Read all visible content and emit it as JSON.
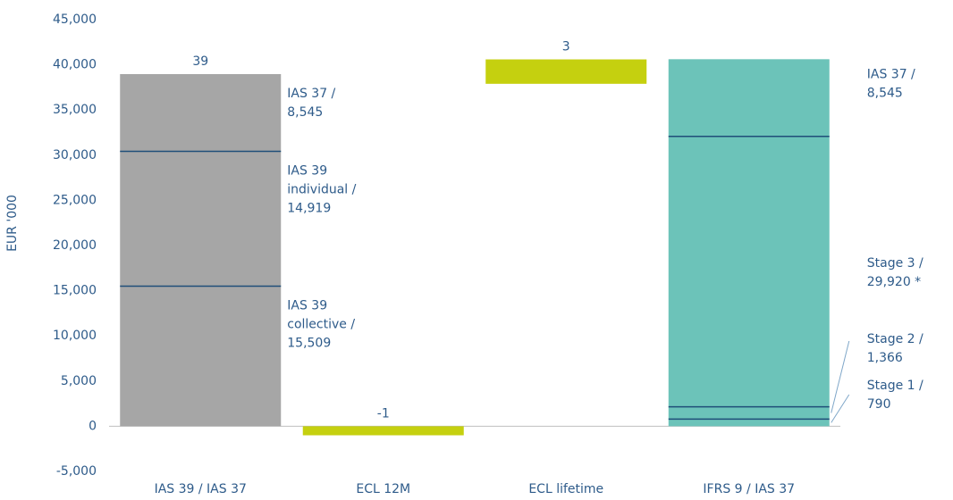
{
  "chart_data": {
    "type": "waterfall",
    "ylabel": "EUR '000",
    "categories": [
      "IAS 39 / IAS 37",
      "ECL 12M",
      "ECL lifetime",
      "IFRS 9 / IAS 37"
    ],
    "ylim": [
      -5000,
      45000
    ],
    "yticks": [
      {
        "value": -5000,
        "label": "-5,000"
      },
      0,
      {
        "value": 5000,
        "label": "5,000"
      },
      {
        "value": 10000,
        "label": "10,000"
      },
      {
        "value": 15000,
        "label": "15,000"
      },
      {
        "value": 20000,
        "label": "20,000"
      },
      {
        "value": 25000,
        "label": "25,000"
      },
      {
        "value": 30000,
        "label": "30,000"
      },
      {
        "value": 35000,
        "label": "35,000"
      },
      {
        "value": 40000,
        "label": "40,000"
      },
      {
        "value": 45000,
        "label": "45,000"
      }
    ],
    "divider_color": "#1f4e79",
    "bars": [
      {
        "start": 0,
        "color": "#a6a6a6",
        "top_label": "39",
        "segments": [
          {
            "name": [
              "IAS 39",
              "collective /"
            ],
            "value": 15509,
            "value_label": "15,509"
          },
          {
            "name": [
              "IAS 39",
              "individual /"
            ],
            "value": 14919,
            "value_label": "14,919"
          },
          {
            "name": [
              "IAS 37 /"
            ],
            "value": 8545,
            "value_label": "8,545"
          }
        ]
      },
      {
        "start": 0,
        "color": "#c5d00f",
        "top_label": "-1",
        "segments": [
          {
            "value": -1000
          }
        ]
      },
      {
        "start": 37900,
        "color": "#c5d00f",
        "top_label": "3",
        "segments": [
          {
            "value": 2700
          }
        ]
      },
      {
        "start": 0,
        "color": "#6cc3b9",
        "segments": [
          {
            "name": [
              "Stage 1 /"
            ],
            "value": 790,
            "value_label": "790"
          },
          {
            "name": [
              "Stage 2 /"
            ],
            "value": 1366,
            "value_label": "1,366"
          },
          {
            "name": [
              "Stage 3 /"
            ],
            "value": 29920,
            "value_label": "29,920 *"
          },
          {
            "name": [
              "IAS 37 /"
            ],
            "value": 8545,
            "value_label": "8,545"
          }
        ]
      }
    ]
  }
}
